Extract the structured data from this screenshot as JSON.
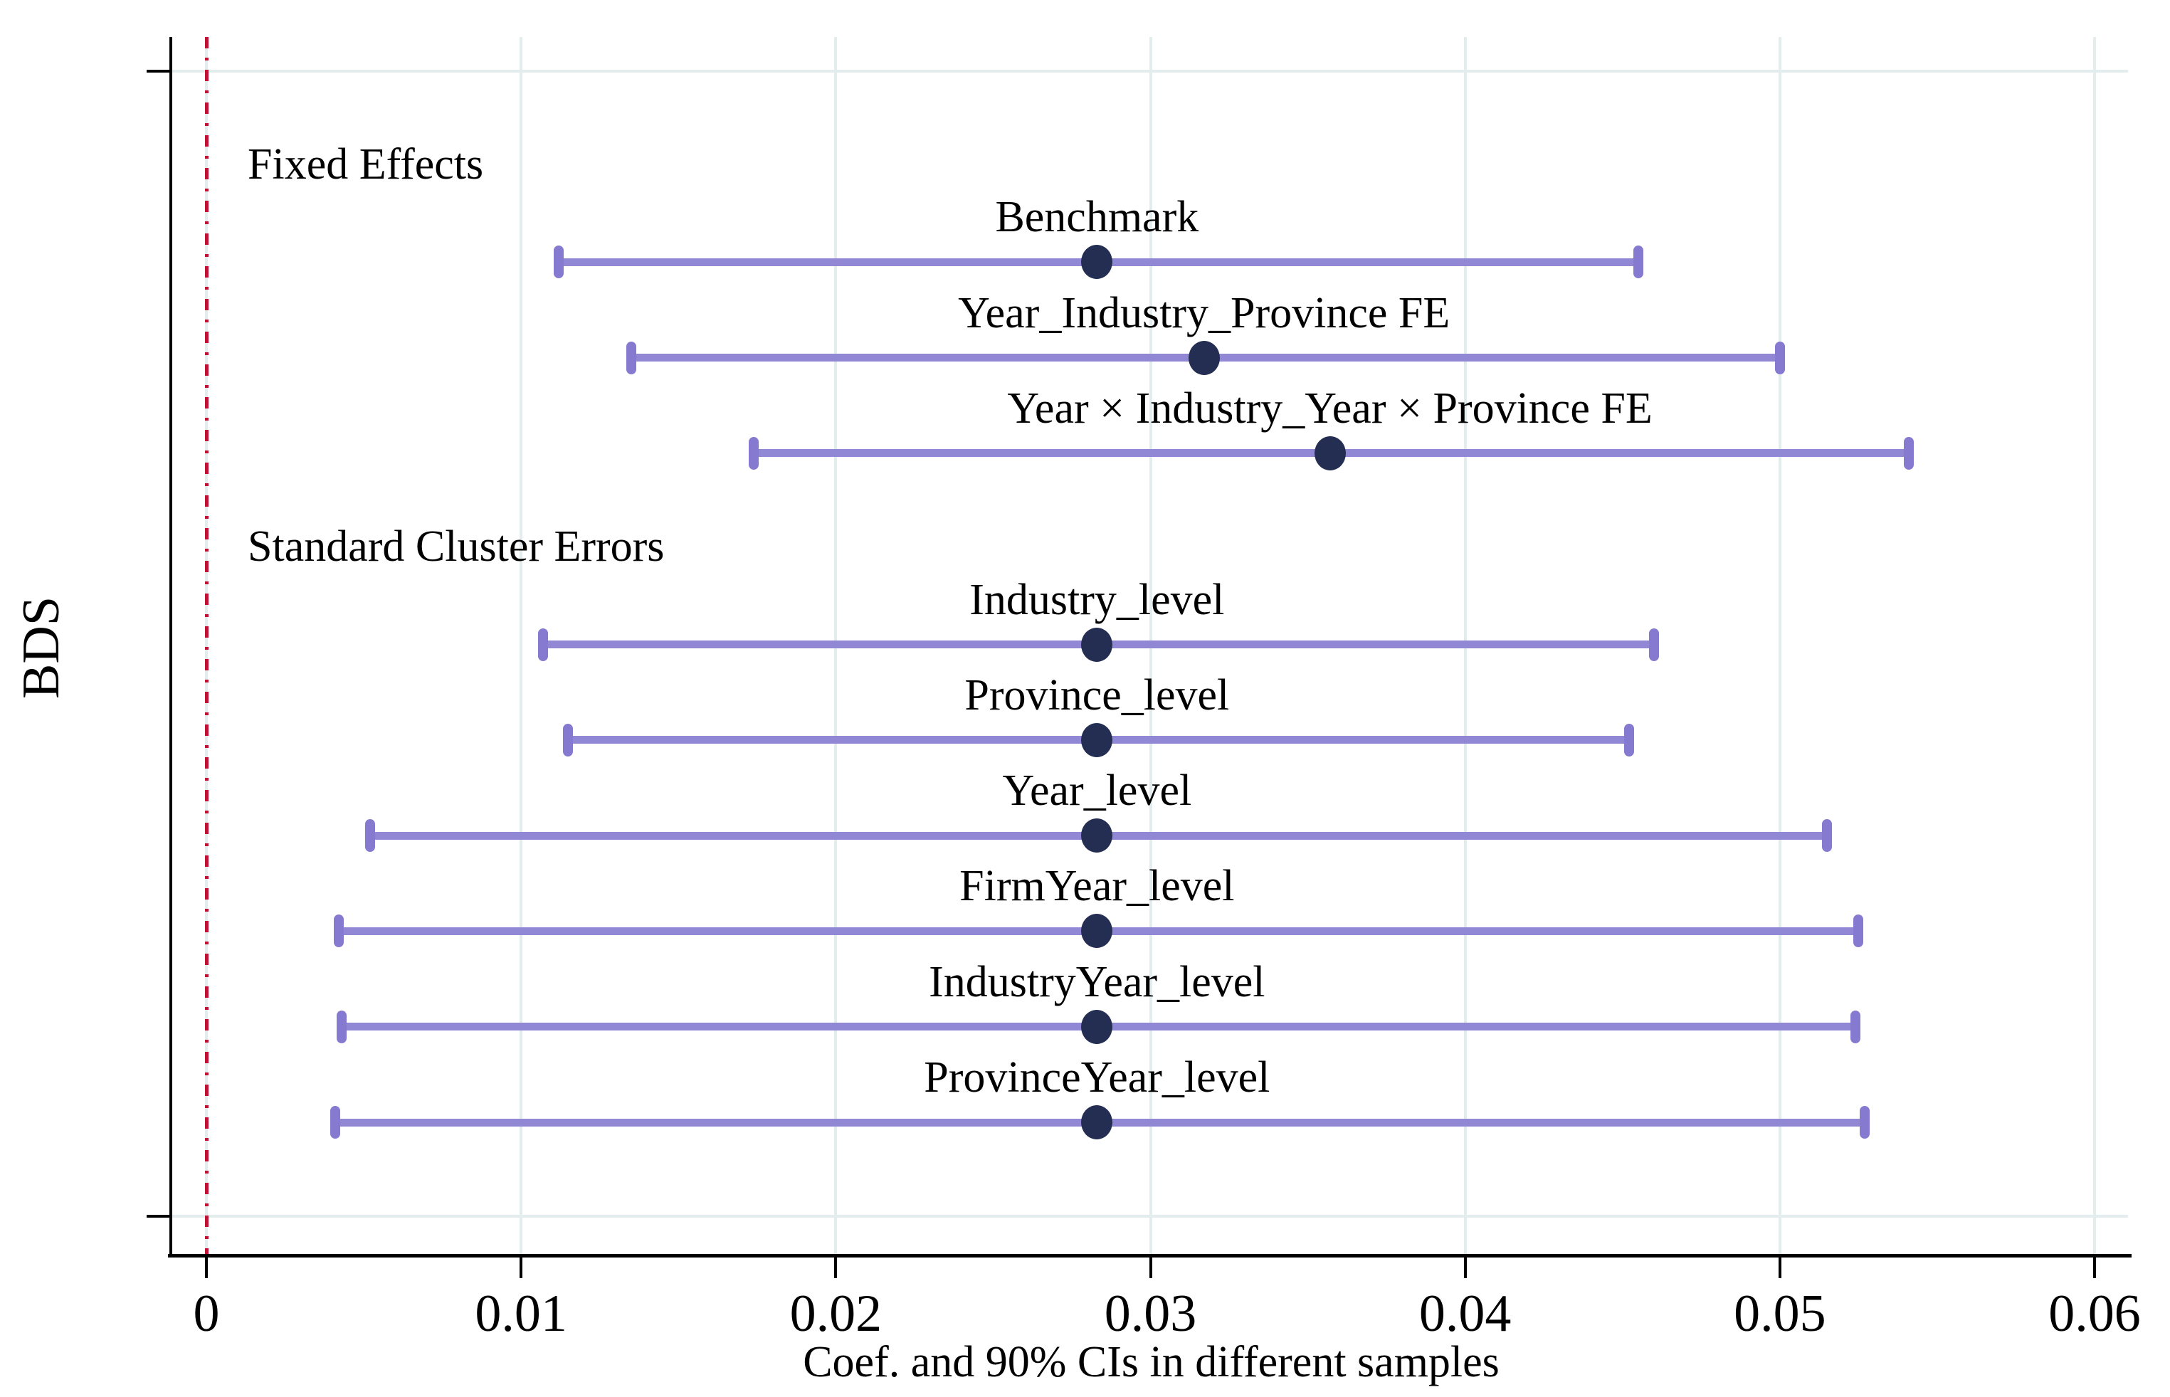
{
  "figure": {
    "xlabel": "Coef. and 90% CIs in different samples",
    "ylabel": "BDS"
  },
  "chart_data": {
    "type": "scatter",
    "subtype": "coefficient-ci-forest-plot",
    "title": "",
    "xlabel": "Coef. and 90% CIs in different samples",
    "ylabel": "BDS",
    "ci_level": "90%",
    "grid": true,
    "legend": "none",
    "xlim": [
      -0.0011,
      0.0612
    ],
    "reference_line_x": 0,
    "xticks": [
      {
        "value": 0,
        "label": "0"
      },
      {
        "value": 0.01,
        "label": "0.01"
      },
      {
        "value": 0.02,
        "label": "0.02"
      },
      {
        "value": 0.03,
        "label": "0.03"
      },
      {
        "value": 0.04,
        "label": "0.04"
      },
      {
        "value": 0.05,
        "label": "0.05"
      },
      {
        "value": 0.06,
        "label": "0.06"
      }
    ],
    "groups": [
      {
        "label": "Fixed Effects",
        "items": [
          {
            "label": "Benchmark",
            "coef": 0.0283,
            "ci_low": 0.0112,
            "ci_high": 0.0455
          },
          {
            "label": "Year_Industry_Province FE",
            "coef": 0.0317,
            "ci_low": 0.0135,
            "ci_high": 0.05
          },
          {
            "label": "Year × Industry_Year × Province FE",
            "coef": 0.0357,
            "ci_low": 0.0174,
            "ci_high": 0.0541
          }
        ]
      },
      {
        "label": "Standard Cluster Errors",
        "items": [
          {
            "label": "Industry_level",
            "coef": 0.0283,
            "ci_low": 0.0107,
            "ci_high": 0.046
          },
          {
            "label": "Province_level",
            "coef": 0.0283,
            "ci_low": 0.0115,
            "ci_high": 0.0452
          },
          {
            "label": "Year_level",
            "coef": 0.0283,
            "ci_low": 0.0052,
            "ci_high": 0.0515
          },
          {
            "label": "FirmYear_level",
            "coef": 0.0283,
            "ci_low": 0.0042,
            "ci_high": 0.0525
          },
          {
            "label": "IndustryYear_level",
            "coef": 0.0283,
            "ci_low": 0.0043,
            "ci_high": 0.0524
          },
          {
            "label": "ProvinceYear_level",
            "coef": 0.0283,
            "ci_low": 0.0041,
            "ci_high": 0.0527
          }
        ]
      }
    ],
    "colors": {
      "ci_bar": "#9188d5",
      "ci_cap": "#857ad0",
      "point": "#232e52",
      "reference_line": "#c11235",
      "gridline": "#e3edee",
      "axis": "#000000"
    }
  }
}
